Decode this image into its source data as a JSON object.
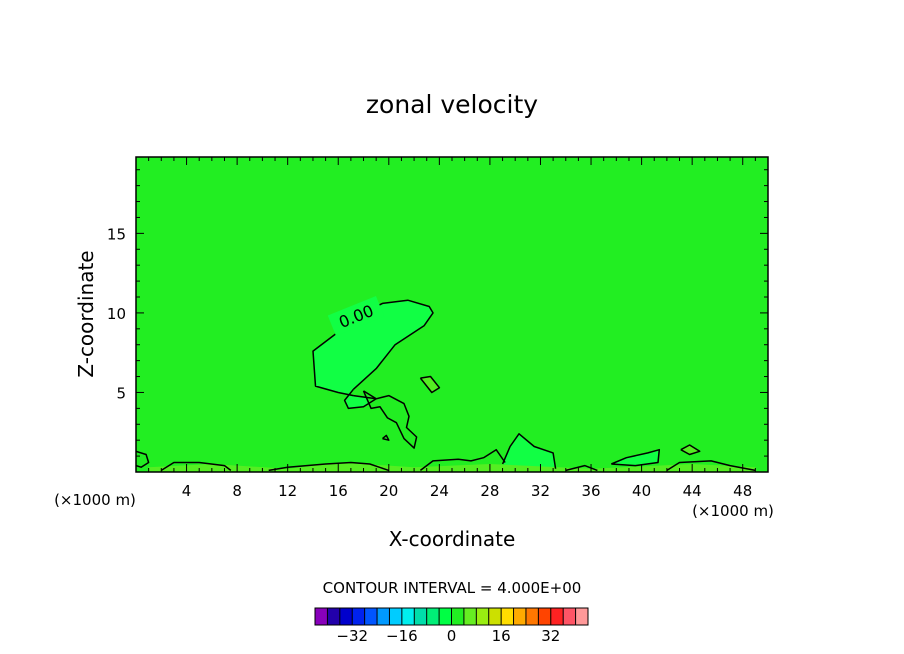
{
  "chart_data": {
    "type": "contour",
    "title": "zonal velocity",
    "xlabel": "X-coordinate",
    "ylabel": "Z-coordinate",
    "x_unit_left": "(×1000 m)",
    "x_unit_right": "(×1000 m)",
    "xlim": [
      0,
      50
    ],
    "ylim": [
      0,
      19.8
    ],
    "x_ticks": [
      4,
      8,
      12,
      16,
      20,
      24,
      28,
      32,
      36,
      40,
      44,
      48
    ],
    "x_tick_labels": [
      "4",
      "8",
      "12",
      "16",
      "20",
      "24",
      "28",
      "32",
      "36",
      "40",
      "44",
      "48"
    ],
    "y_ticks": [
      5,
      10,
      15
    ],
    "y_tick_labels": [
      "5",
      "10",
      "15"
    ],
    "contour_interval_text": "CONTOUR INTERVAL = 4.000E+00",
    "contour_label": "0.00",
    "background_value_color": "#22ee22",
    "colorbar": {
      "colors": [
        "#8800bb",
        "#2200aa",
        "#0000cc",
        "#0022ee",
        "#0055ff",
        "#0099ff",
        "#00ccff",
        "#00eeee",
        "#00ddaa",
        "#00ee77",
        "#00ff44",
        "#22ee22",
        "#66ee22",
        "#99ee11",
        "#cce000",
        "#ffdd00",
        "#ffaa00",
        "#ff7700",
        "#ff4400",
        "#ff2222",
        "#ff5566",
        "#ff9999"
      ],
      "tick_values": [
        -32,
        -16,
        0,
        16,
        32
      ],
      "tick_labels": [
        "−32",
        "−16",
        "0",
        "16",
        "32"
      ]
    },
    "regions": [
      {
        "name": "positive-core",
        "fill": "#11ff44",
        "x": [
          17.2,
          16.0,
          14.2,
          14.0,
          16.0,
          18.0,
          19.5,
          21.5,
          23.2,
          23.5,
          22.8,
          20.5,
          19.0,
          17.2,
          16.5,
          16.8,
          18.0,
          19.0,
          17.2
        ],
        "z": [
          4.8,
          5.0,
          5.4,
          7.6,
          8.8,
          10.0,
          10.6,
          10.8,
          10.4,
          10.0,
          9.2,
          8.0,
          6.5,
          5.2,
          4.5,
          4.0,
          4.1,
          4.6,
          4.8
        ]
      },
      {
        "name": "lower-lobe",
        "fill": "#22ee22",
        "x": [
          18.0,
          19.0,
          20.0,
          21.2,
          21.6,
          21.4,
          22.2,
          22.0,
          21.2,
          20.6,
          19.9,
          19.3,
          18.6,
          18.0
        ],
        "z": [
          5.1,
          4.6,
          4.8,
          4.3,
          3.5,
          2.8,
          2.2,
          1.5,
          2.1,
          3.1,
          3.4,
          4.1,
          4.0,
          5.1
        ]
      },
      {
        "name": "blob-x22",
        "fill": "#55ee22",
        "x": [
          22.5,
          23.3,
          24.0,
          23.4,
          22.5
        ],
        "z": [
          5.9,
          6.0,
          5.3,
          5.0,
          5.9
        ]
      },
      {
        "name": "blob-x43",
        "fill": "#55ee22",
        "x": [
          43.1,
          43.8,
          44.6,
          43.8,
          43.1
        ],
        "z": [
          1.4,
          1.7,
          1.3,
          1.1,
          1.4
        ]
      },
      {
        "name": "bump-x30",
        "fill": "#11ff44",
        "x": [
          29.0,
          29.6,
          30.3,
          31.5,
          33.0,
          33.2,
          31.0,
          29.0
        ],
        "z": [
          0.5,
          1.6,
          2.4,
          1.6,
          1.2,
          0.2,
          0.2,
          0.5
        ]
      },
      {
        "name": "bump-x38",
        "fill": "#11ff44",
        "x": [
          37.6,
          38.8,
          40.5,
          41.4,
          41.3,
          39.5,
          37.6
        ],
        "z": [
          0.5,
          0.9,
          1.2,
          1.4,
          0.6,
          0.4,
          0.5
        ]
      },
      {
        "name": "near-surface-band",
        "fill": "#55ee22",
        "x": [
          1,
          6,
          12,
          16,
          22,
          28,
          36,
          44,
          49,
          49,
          1
        ],
        "z": [
          0.3,
          0.5,
          0.2,
          0.6,
          0.3,
          0.5,
          0.2,
          0.5,
          0.3,
          0.05,
          0.05
        ]
      }
    ],
    "contour_lines": [
      {
        "x": [
          17.2,
          16.0,
          14.2,
          14.0,
          16.0,
          18.0,
          19.5,
          21.5,
          23.2,
          23.5,
          22.8,
          20.5,
          19.0,
          17.2
        ],
        "z": [
          4.8,
          5.0,
          5.4,
          7.6,
          8.8,
          10.0,
          10.6,
          10.8,
          10.4,
          10.0,
          9.2,
          8.0,
          6.5,
          5.2
        ]
      },
      {
        "x": [
          17.2,
          16.5,
          16.8,
          18.0,
          19.0,
          17.2
        ],
        "z": [
          5.2,
          4.5,
          4.0,
          4.1,
          4.6,
          4.8
        ]
      },
      {
        "x": [
          18.0,
          19.0,
          20.0,
          21.2,
          21.6,
          21.4,
          22.2,
          22.0,
          21.2,
          20.6,
          19.9,
          19.3,
          18.6,
          18.0
        ],
        "z": [
          5.1,
          4.6,
          4.8,
          4.3,
          3.5,
          2.8,
          2.2,
          1.5,
          2.1,
          3.1,
          3.4,
          4.1,
          4.0,
          5.1
        ]
      },
      {
        "x": [
          22.5,
          23.3,
          24.0,
          23.4,
          22.5
        ],
        "z": [
          5.9,
          6.0,
          5.3,
          5.0,
          5.9
        ]
      },
      {
        "x": [
          43.1,
          43.8,
          44.6,
          43.8,
          43.1
        ],
        "z": [
          1.4,
          1.7,
          1.3,
          1.1,
          1.4
        ]
      },
      {
        "x": [
          19.5,
          19.8,
          20.0,
          19.5
        ],
        "z": [
          2.1,
          2.3,
          2.0,
          2.1
        ]
      },
      {
        "x": [
          0,
          0.8,
          1.0,
          0.4,
          0
        ],
        "z": [
          1.3,
          1.1,
          0.6,
          0.3,
          0.4
        ]
      },
      {
        "x": [
          2.0,
          3.0,
          5.0,
          7.0,
          7.5
        ],
        "z": [
          0.1,
          0.6,
          0.6,
          0.4,
          0.1
        ]
      },
      {
        "x": [
          10.5,
          12.0,
          13.5,
          15.0,
          17.0,
          18.5,
          20.0
        ],
        "z": [
          0.1,
          0.3,
          0.4,
          0.5,
          0.6,
          0.5,
          0.1
        ]
      },
      {
        "x": [
          22.5,
          23.5,
          25.5,
          26.5,
          27.5,
          28.5,
          29.2
        ],
        "z": [
          0.1,
          0.7,
          0.8,
          0.7,
          0.9,
          1.4,
          0.6
        ]
      },
      {
        "x": [
          29.0,
          29.6,
          30.3,
          31.5,
          33.0,
          33.2
        ],
        "z": [
          0.5,
          1.6,
          2.4,
          1.6,
          1.2,
          0.2
        ]
      },
      {
        "x": [
          34.0,
          35.5,
          36.5
        ],
        "z": [
          0.1,
          0.4,
          0.1
        ]
      },
      {
        "x": [
          37.6,
          38.8,
          40.5,
          41.4,
          41.3,
          39.5,
          37.6
        ],
        "z": [
          0.5,
          0.9,
          1.2,
          1.4,
          0.6,
          0.4,
          0.5
        ]
      },
      {
        "x": [
          42.0,
          43.0,
          45.5,
          47.0,
          49.0
        ],
        "z": [
          0.1,
          0.6,
          0.7,
          0.4,
          0.1
        ]
      }
    ]
  }
}
